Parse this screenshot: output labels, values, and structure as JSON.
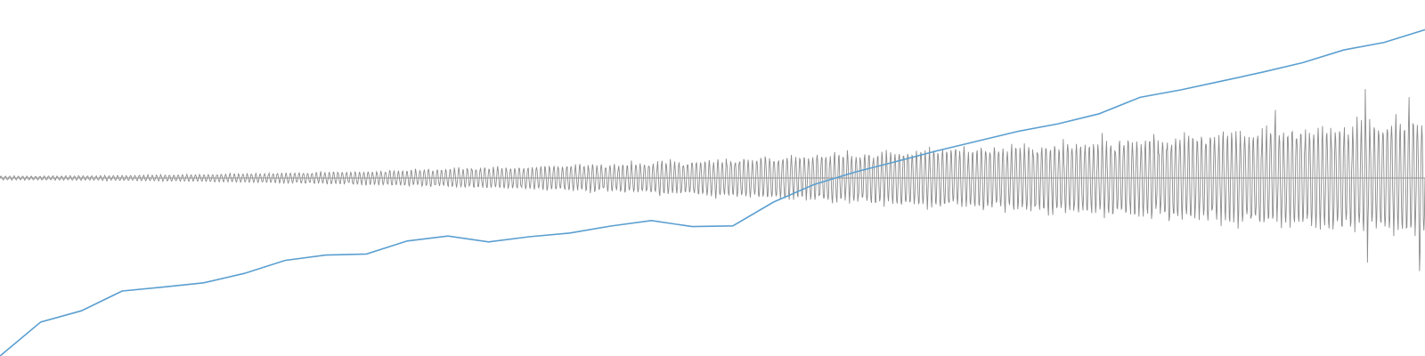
{
  "chart_data": {
    "type": "line",
    "title": "",
    "xlabel": "",
    "ylabel": "",
    "grid": false,
    "legend": "none",
    "colors": {
      "trend": "#5b9fd0",
      "oscillation": "#8c8c8c",
      "baseline": "#9a9a9a"
    },
    "series": [
      {
        "role": "trend",
        "x": [
          0,
          1,
          2,
          3,
          4,
          5,
          6,
          7,
          8,
          9,
          10,
          11,
          12,
          13,
          14,
          15,
          16,
          17,
          18,
          19,
          20,
          21,
          22,
          23,
          24,
          25,
          26,
          27,
          28,
          29,
          30,
          31,
          32,
          33,
          34,
          35
        ],
        "values": [
          -1.0,
          -0.809,
          -0.746,
          -0.635,
          -0.613,
          -0.589,
          -0.536,
          -0.463,
          -0.433,
          -0.427,
          -0.354,
          -0.326,
          -0.359,
          -0.33,
          -0.309,
          -0.27,
          -0.239,
          -0.273,
          -0.269,
          -0.135,
          -0.036,
          0.033,
          0.092,
          0.152,
          0.207,
          0.262,
          0.305,
          0.361,
          0.453,
          0.495,
          0.544,
          0.594,
          0.648,
          0.719,
          0.762,
          0.833
        ]
      },
      {
        "role": "oscillation",
        "x_range": [
          0,
          35
        ],
        "cycles": 330,
        "amplitude_start": 0.012,
        "amplitude_end": 0.36,
        "growth_exponent": 1.8
      }
    ],
    "ylim": [
      -1.0,
      1.0
    ],
    "xlim": [
      0,
      35
    ]
  }
}
